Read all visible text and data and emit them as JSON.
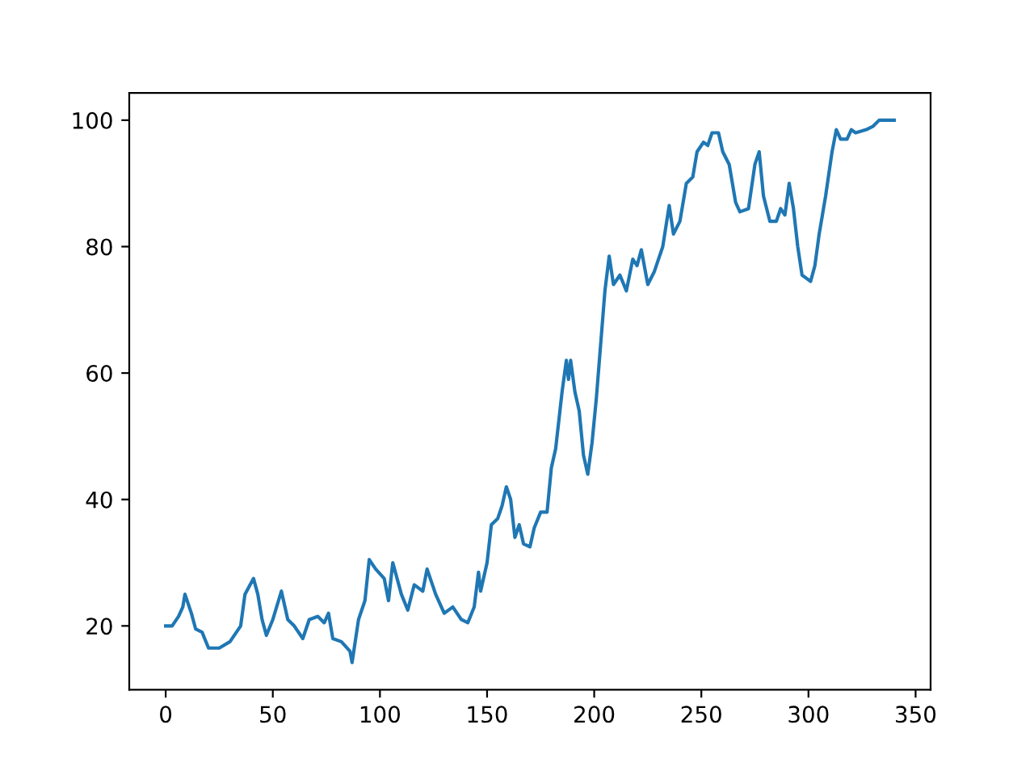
{
  "chart_data": {
    "type": "line",
    "xlim": [
      -17,
      357
    ],
    "ylim": [
      9.9,
      104.3
    ],
    "xticks": [
      0,
      50,
      100,
      150,
      200,
      250,
      300,
      350
    ],
    "yticks": [
      20,
      40,
      60,
      80,
      100
    ],
    "grid": false,
    "legend": false,
    "series": [
      {
        "color": "#1f77b4",
        "x": [
          0,
          3,
          6,
          8,
          9,
          12,
          14,
          17,
          20,
          25,
          30,
          35,
          37,
          41,
          43,
          45,
          47,
          50,
          54,
          57,
          60,
          64,
          67,
          71,
          74,
          76,
          78,
          82,
          86,
          87,
          90,
          93,
          95,
          98,
          102,
          104,
          106,
          110,
          113,
          116,
          120,
          122,
          126,
          130,
          134,
          138,
          141,
          144,
          146,
          147,
          150,
          152,
          155,
          157,
          159,
          161,
          163,
          165,
          167,
          170,
          172,
          175,
          178,
          180,
          182,
          185,
          187,
          188,
          189,
          191,
          193,
          195,
          197,
          199,
          201,
          205,
          207,
          209,
          212,
          215,
          218,
          220,
          222,
          225,
          228,
          230,
          232,
          235,
          237,
          240,
          243,
          246,
          248,
          251,
          253,
          255,
          258,
          260,
          263,
          266,
          268,
          272,
          275,
          277,
          279,
          282,
          285,
          287,
          289,
          291,
          293,
          295,
          297,
          299,
          301,
          303,
          305,
          308,
          311,
          313,
          315,
          318,
          320,
          322,
          327,
          330,
          333,
          340
        ],
        "values": [
          20,
          20,
          21.5,
          23,
          25,
          22,
          19.5,
          19,
          16.5,
          16.5,
          17.5,
          20,
          25,
          27.5,
          25,
          21,
          18.5,
          21,
          25.5,
          21,
          20,
          18,
          21,
          21.5,
          20.5,
          22,
          18,
          17.5,
          16,
          14.2,
          21,
          24,
          30.5,
          29,
          27.5,
          24,
          30,
          25,
          22.5,
          26.5,
          25.5,
          29,
          25,
          22,
          23,
          21,
          20.5,
          23,
          28.5,
          25.5,
          30,
          36,
          37,
          39,
          42,
          40,
          34,
          36,
          33,
          32.5,
          35.5,
          38,
          38,
          45,
          48,
          57,
          62,
          59,
          62,
          57,
          54,
          47,
          44,
          49,
          56,
          73,
          78.5,
          74,
          75.5,
          73,
          78,
          77,
          79.5,
          74,
          76,
          78,
          80,
          86.5,
          82,
          84,
          90,
          91,
          95,
          96.5,
          96,
          98,
          98,
          95,
          93,
          87,
          85.5,
          86,
          93,
          95,
          88,
          84,
          84,
          86,
          85,
          90,
          86,
          80,
          75.5,
          75,
          74.5,
          77,
          82,
          88,
          95,
          98.5,
          97,
          97,
          98.5,
          98,
          98.5,
          99,
          100,
          100
        ]
      }
    ]
  }
}
